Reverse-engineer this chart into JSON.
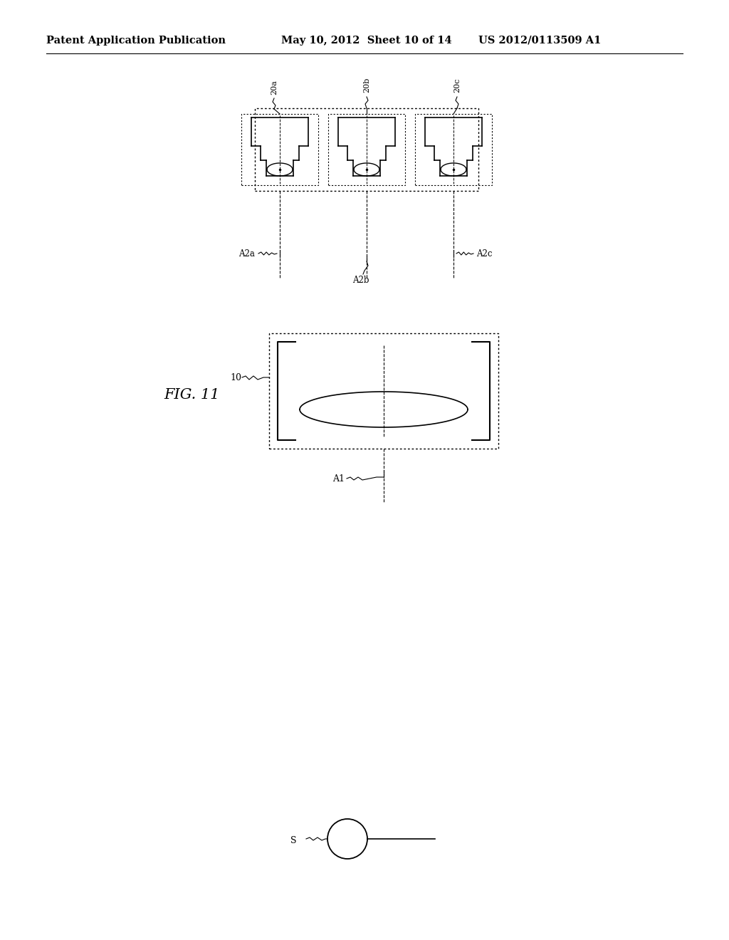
{
  "header_left": "Patent Application Publication",
  "header_mid": "May 10, 2012  Sheet 10 of 14",
  "header_right": "US 2012/0113509 A1",
  "fig_label": "FIG. 11",
  "bg_color": "#ffffff",
  "line_color": "#000000"
}
